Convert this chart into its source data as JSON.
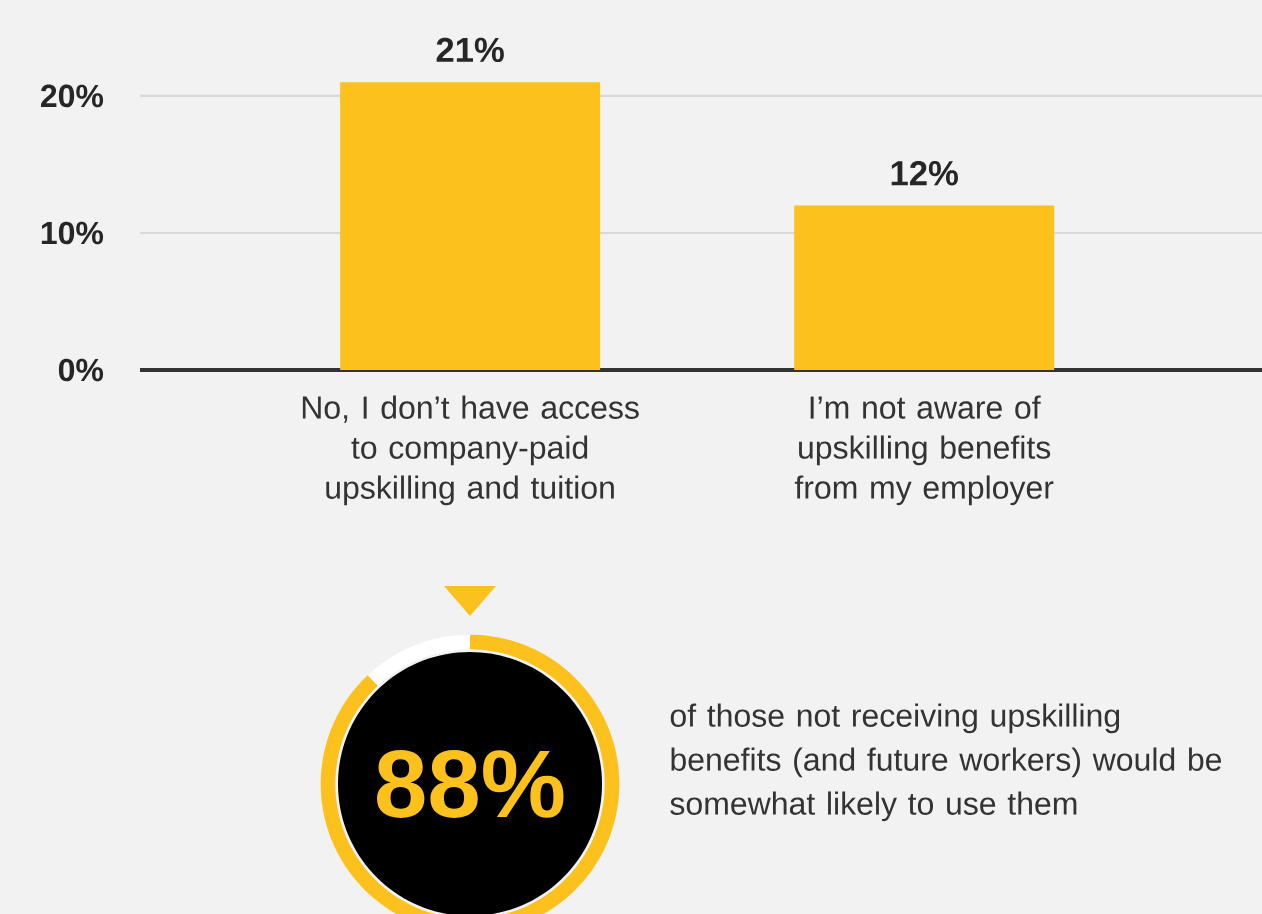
{
  "chart_data": [
    {
      "type": "bar",
      "categories": [
        "No, I don’t have access to company-paid upskilling and tuition",
        "I’m not aware of upskilling benefits from my employer"
      ],
      "values": [
        21,
        12
      ],
      "value_labels": [
        "21%",
        "12%"
      ],
      "color": "#fcc11d",
      "ylim": [
        0,
        27
      ],
      "yticks": [
        {
          "value": 0,
          "label": "0%"
        },
        {
          "value": 10,
          "label": "10%"
        },
        {
          "value": 20,
          "label": "20%"
        }
      ],
      "grid": "y"
    },
    {
      "type": "donut",
      "categories": [
        null,
        null
      ],
      "values": [
        88,
        12
      ],
      "colors": [
        "#fcc11d",
        "#ffffff"
      ],
      "value_labels": [
        "88%",
        null
      ],
      "annotations": [
        "of those not receiving upskilling benefits (and future workers) would be somewhat likely to use them"
      ]
    }
  ]
}
